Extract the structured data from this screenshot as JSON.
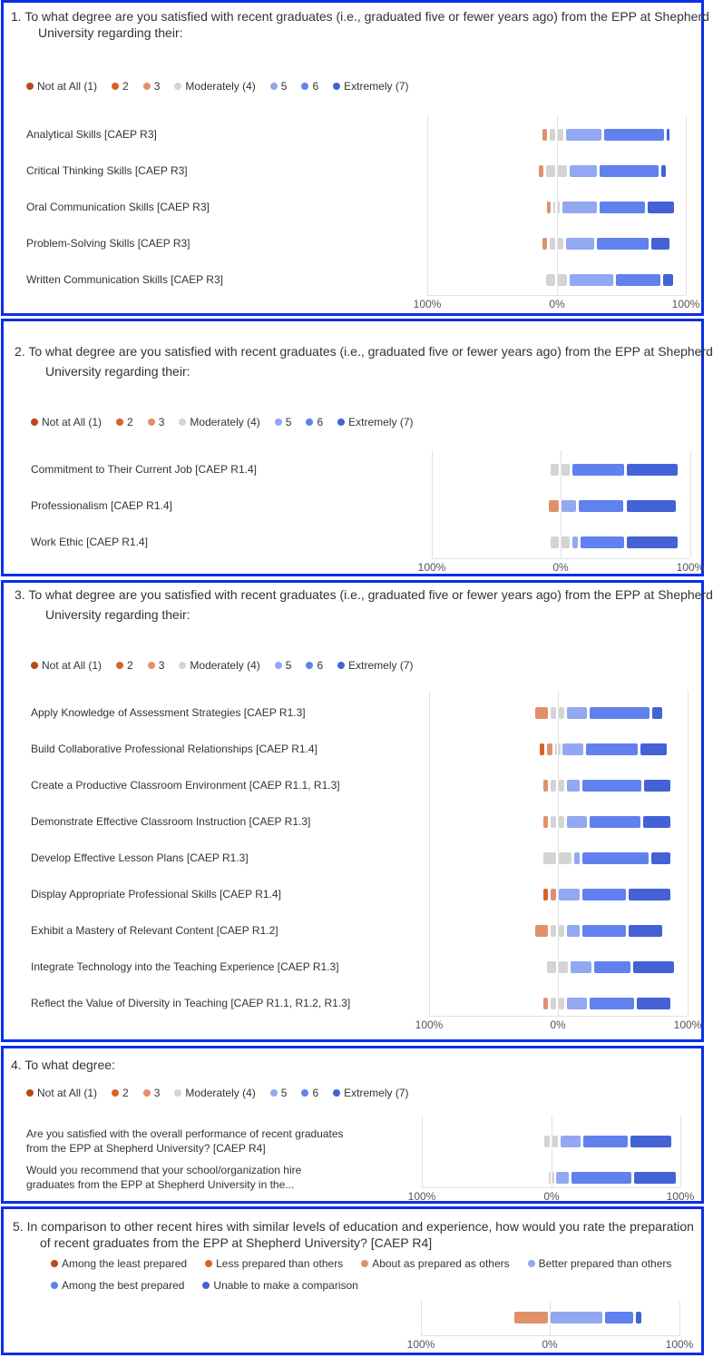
{
  "colors": {
    "border": "#0b2fe6",
    "scale7": [
      "#b84a1a",
      "#d5642a",
      "#e0916a",
      "#d4d4d4",
      "#92a8f2",
      "#6181ee",
      "#4462d6"
    ]
  },
  "likert_legend": [
    "Not at All (1)",
    "2",
    "3",
    "Moderately (4)",
    "5",
    "6",
    "Extremely (7)"
  ],
  "axis_labels": [
    "100%",
    "0%",
    "100%"
  ],
  "chart_data": [
    {
      "type": "bar",
      "orientation": "horizontal",
      "stacking": "diverging",
      "title_lines": [
        "1. To what degree are you satisfied with recent graduates (i.e., graduated five or fewer years ago) from the EPP at Shepherd",
        "University regarding their:"
      ],
      "xlim": [
        -100,
        100
      ],
      "unit": "%",
      "categories": [
        "Analytical Skills [CAEP R3]",
        "Critical Thinking Skills [CAEP R3]",
        "Oral Communication Skills [CAEP R3]",
        "Problem-Solving Skills [CAEP R3]",
        "Written Communication Skills [CAEP R3]"
      ],
      "values": [
        [
          0,
          0,
          6,
          12,
          30,
          48,
          4
        ],
        [
          0,
          0,
          6,
          18,
          23,
          48,
          5
        ],
        [
          0,
          0,
          5,
          7,
          29,
          37,
          22
        ],
        [
          0,
          0,
          6,
          12,
          24,
          42,
          16
        ],
        [
          0,
          0,
          0,
          18,
          36,
          36,
          10
        ]
      ]
    },
    {
      "type": "bar",
      "orientation": "horizontal",
      "stacking": "diverging",
      "title_lines": [
        "2. To what degree are you satisfied with recent graduates (i.e., graduated five or fewer years ago) from the EPP at Shepherd",
        "University regarding their:"
      ],
      "xlim": [
        -100,
        100
      ],
      "unit": "%",
      "categories": [
        "Commitment to Their Current Job [CAEP R1.4]",
        "Professionalism [CAEP R1.4]",
        "Work Ethic [CAEP R1.4]"
      ],
      "values": [
        [
          0,
          0,
          0,
          17,
          0,
          42,
          41
        ],
        [
          0,
          0,
          10,
          0,
          13,
          37,
          40
        ],
        [
          0,
          0,
          0,
          17,
          6,
          36,
          41
        ]
      ]
    },
    {
      "type": "bar",
      "orientation": "horizontal",
      "stacking": "diverging",
      "title_lines": [
        "3. To what degree are you satisfied with recent graduates (i.e., graduated five or fewer years ago) from the EPP at Shepherd",
        "University regarding their:"
      ],
      "xlim": [
        -100,
        100
      ],
      "unit": "%",
      "categories": [
        "Apply Knowledge of Assessment Strategies [CAEP R1.3]",
        "Build Collaborative Professional Relationships [CAEP R1.4]",
        "Create a Productive Classroom Environment [CAEP R1.1, R1.3]",
        "Demonstrate Effective Classroom Instruction [CAEP R1.3]",
        "Develop Effective Lesson Plans [CAEP R1.3]",
        "Display Appropriate Professional Skills [CAEP R1.4]",
        "Exhibit a Mastery of Relevant Content  [CAEP R1.2]",
        "Integrate Technology into the Teaching Experience [CAEP R1.3]",
        "Reflect the Value of Diversity in Teaching [CAEP R1.1, R1.2, R1.3]"
      ],
      "values": [
        [
          0,
          0,
          12,
          12,
          18,
          48,
          10
        ],
        [
          0,
          6,
          6,
          6,
          18,
          42,
          22
        ],
        [
          0,
          0,
          6,
          12,
          12,
          48,
          22
        ],
        [
          0,
          0,
          6,
          12,
          18,
          41,
          23
        ],
        [
          0,
          0,
          0,
          24,
          6,
          53,
          17
        ],
        [
          0,
          6,
          6,
          0,
          18,
          36,
          34
        ],
        [
          0,
          0,
          12,
          12,
          12,
          36,
          28
        ],
        [
          0,
          0,
          0,
          18,
          18,
          30,
          34
        ],
        [
          0,
          0,
          6,
          12,
          18,
          36,
          28
        ]
      ]
    },
    {
      "type": "bar",
      "orientation": "horizontal",
      "stacking": "diverging",
      "title_lines": [
        "4. To what degree:"
      ],
      "xlim": [
        -100,
        100
      ],
      "unit": "%",
      "categories": [
        [
          "Are you satisfied with the overall performance of recent graduates",
          "from the EPP at Shepherd University? [CAEP R4]"
        ],
        [
          "Would you recommend that your school/organization hire",
          "graduates from the EPP at Shepherd University in the..."
        ]
      ],
      "values": [
        [
          0,
          0,
          0,
          12,
          18,
          36,
          34
        ],
        [
          0,
          0,
          0,
          6,
          12,
          48,
          34
        ]
      ]
    },
    {
      "type": "bar",
      "orientation": "horizontal",
      "stacking": "diverging",
      "title_lines": [
        "5. In comparison to other recent hires with similar levels of education and experience, how would you rate the preparation",
        "of recent graduates from the EPP at Shepherd University? [CAEP R4]"
      ],
      "xlim": [
        -100,
        100
      ],
      "unit": "%",
      "legend": [
        "Among the least prepared",
        "Less prepared than others",
        "About as prepared as others",
        "Better prepared than others",
        "Among the best prepared",
        "Unable to make a comparison"
      ],
      "legend_colors": [
        "#b84a1a",
        "#d5642a",
        "#e0916a",
        "#92a8f2",
        "#6181ee",
        "#4462d6"
      ],
      "categories": [
        ""
      ],
      "values": [
        [
          0,
          0,
          28,
          42,
          24,
          6
        ]
      ]
    }
  ]
}
